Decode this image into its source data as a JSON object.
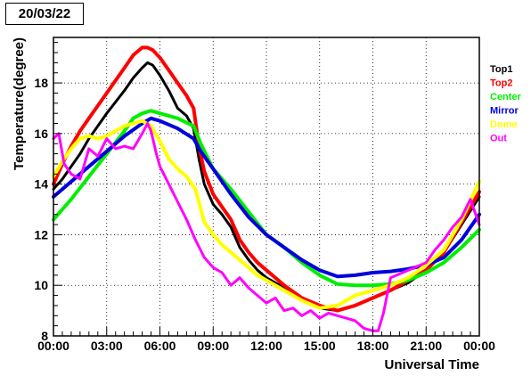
{
  "header": {
    "date": "20/03/22"
  },
  "chart_data": {
    "type": "scatter",
    "title": "",
    "xlabel": "Universal Time",
    "ylabel": "Temperature(degree)",
    "xlim": [
      0,
      24
    ],
    "ylim": [
      8,
      19.8
    ],
    "x_ticks": [
      {
        "v": 0,
        "label": "00:00"
      },
      {
        "v": 3,
        "label": "03:00"
      },
      {
        "v": 6,
        "label": "06:00"
      },
      {
        "v": 9,
        "label": "09:00"
      },
      {
        "v": 12,
        "label": "12:00"
      },
      {
        "v": 15,
        "label": "15:00"
      },
      {
        "v": 18,
        "label": "18:00"
      },
      {
        "v": 21,
        "label": "21:00"
      },
      {
        "v": 24,
        "label": "00:00"
      }
    ],
    "y_ticks": [
      {
        "v": 8,
        "label": "8"
      },
      {
        "v": 10,
        "label": "10"
      },
      {
        "v": 12,
        "label": "12"
      },
      {
        "v": 14,
        "label": "14"
      },
      {
        "v": 16,
        "label": "16"
      },
      {
        "v": 18,
        "label": "18"
      }
    ],
    "grid": true,
    "legend_position": "right",
    "series": [
      {
        "name": "Top1",
        "color": "#000000",
        "width": 3,
        "points": [
          [
            0,
            13.8
          ],
          [
            0.5,
            14.2
          ],
          [
            1,
            14.7
          ],
          [
            1.5,
            15.2
          ],
          [
            2,
            15.8
          ],
          [
            3,
            16.8
          ],
          [
            4,
            17.7
          ],
          [
            4.5,
            18.2
          ],
          [
            5,
            18.6
          ],
          [
            5.3,
            18.8
          ],
          [
            5.6,
            18.7
          ],
          [
            6,
            18.3
          ],
          [
            6.5,
            17.7
          ],
          [
            7,
            17.0
          ],
          [
            7.5,
            16.7
          ],
          [
            7.9,
            16.2
          ],
          [
            8.2,
            15.0
          ],
          [
            8.5,
            14.0
          ],
          [
            9,
            13.2
          ],
          [
            9.5,
            12.8
          ],
          [
            10,
            12.3
          ],
          [
            10.5,
            11.5
          ],
          [
            11,
            11.0
          ],
          [
            11.5,
            10.6
          ],
          [
            12,
            10.3
          ],
          [
            13,
            9.9
          ],
          [
            14,
            9.5
          ],
          [
            15,
            9.1
          ],
          [
            16,
            9.0
          ],
          [
            17,
            9.2
          ],
          [
            18,
            9.5
          ],
          [
            19,
            9.8
          ],
          [
            20,
            10.1
          ],
          [
            21,
            10.6
          ],
          [
            22,
            11.3
          ],
          [
            23,
            12.4
          ],
          [
            24,
            13.5
          ]
        ]
      },
      {
        "name": "Top2",
        "color": "#ff0000",
        "width": 4,
        "points": [
          [
            0,
            14.0
          ],
          [
            0.5,
            14.8
          ],
          [
            1,
            15.5
          ],
          [
            1.5,
            16.1
          ],
          [
            2,
            16.6
          ],
          [
            3,
            17.6
          ],
          [
            4,
            18.6
          ],
          [
            4.5,
            19.1
          ],
          [
            5,
            19.4
          ],
          [
            5.3,
            19.4
          ],
          [
            5.6,
            19.3
          ],
          [
            6,
            19.0
          ],
          [
            6.5,
            18.5
          ],
          [
            7,
            18.0
          ],
          [
            7.5,
            17.5
          ],
          [
            7.9,
            17.0
          ],
          [
            8.2,
            15.5
          ],
          [
            8.5,
            14.5
          ],
          [
            9,
            13.6
          ],
          [
            9.5,
            13.1
          ],
          [
            10,
            12.6
          ],
          [
            10.5,
            11.8
          ],
          [
            11,
            11.3
          ],
          [
            11.5,
            10.9
          ],
          [
            12,
            10.6
          ],
          [
            13,
            10.0
          ],
          [
            14,
            9.5
          ],
          [
            15,
            9.2
          ],
          [
            16,
            9.0
          ],
          [
            17,
            9.2
          ],
          [
            18,
            9.5
          ],
          [
            19,
            9.8
          ],
          [
            20,
            10.2
          ],
          [
            21,
            10.6
          ],
          [
            22,
            11.3
          ],
          [
            23,
            12.5
          ],
          [
            24,
            13.7
          ]
        ]
      },
      {
        "name": "Center",
        "color": "#00ee00",
        "width": 4,
        "points": [
          [
            0,
            12.6
          ],
          [
            1,
            13.4
          ],
          [
            2,
            14.3
          ],
          [
            3,
            15.2
          ],
          [
            4,
            16.1
          ],
          [
            4.5,
            16.6
          ],
          [
            5,
            16.8
          ],
          [
            5.5,
            16.9
          ],
          [
            6,
            16.8
          ],
          [
            7,
            16.6
          ],
          [
            7.9,
            16.3
          ],
          [
            8.3,
            15.6
          ],
          [
            9,
            14.6
          ],
          [
            10,
            13.8
          ],
          [
            11,
            12.9
          ],
          [
            12,
            12.0
          ],
          [
            13,
            11.5
          ],
          [
            14,
            10.9
          ],
          [
            15,
            10.4
          ],
          [
            16,
            10.05
          ],
          [
            17,
            10.0
          ],
          [
            18,
            10.0
          ],
          [
            19,
            10.05
          ],
          [
            20,
            10.2
          ],
          [
            21,
            10.5
          ],
          [
            22,
            10.9
          ],
          [
            23,
            11.5
          ],
          [
            24,
            12.2
          ]
        ]
      },
      {
        "name": "Mirror",
        "color": "#0000dd",
        "width": 4,
        "points": [
          [
            0,
            13.5
          ],
          [
            1,
            14.1
          ],
          [
            2,
            14.7
          ],
          [
            3,
            15.3
          ],
          [
            4,
            15.9
          ],
          [
            5,
            16.4
          ],
          [
            5.5,
            16.6
          ],
          [
            6,
            16.5
          ],
          [
            7,
            16.2
          ],
          [
            7.9,
            15.8
          ],
          [
            8.3,
            15.3
          ],
          [
            9,
            14.6
          ],
          [
            10,
            13.6
          ],
          [
            11,
            12.7
          ],
          [
            12,
            12.0
          ],
          [
            13,
            11.5
          ],
          [
            14,
            11.0
          ],
          [
            15,
            10.6
          ],
          [
            16,
            10.35
          ],
          [
            17,
            10.4
          ],
          [
            18,
            10.5
          ],
          [
            19,
            10.55
          ],
          [
            20,
            10.65
          ],
          [
            21,
            10.8
          ],
          [
            22,
            11.1
          ],
          [
            23,
            11.8
          ],
          [
            24,
            12.8
          ]
        ]
      },
      {
        "name": "Dome",
        "color": "#ffff00",
        "width": 4,
        "points": [
          [
            0,
            14.3
          ],
          [
            0.5,
            14.9
          ],
          [
            1,
            15.4
          ],
          [
            1.5,
            15.8
          ],
          [
            2,
            15.9
          ],
          [
            2.5,
            15.8
          ],
          [
            3,
            15.9
          ],
          [
            3.5,
            16.1
          ],
          [
            4,
            16.3
          ],
          [
            4.5,
            16.4
          ],
          [
            5,
            16.5
          ],
          [
            5.5,
            16.3
          ],
          [
            6,
            15.7
          ],
          [
            6.5,
            15.0
          ],
          [
            7,
            14.6
          ],
          [
            7.5,
            14.3
          ],
          [
            8,
            13.8
          ],
          [
            8.5,
            12.5
          ],
          [
            9,
            12.0
          ],
          [
            9.5,
            11.6
          ],
          [
            10,
            11.3
          ],
          [
            10.5,
            11.0
          ],
          [
            11,
            10.7
          ],
          [
            11.5,
            10.4
          ],
          [
            12,
            10.2
          ],
          [
            13,
            9.8
          ],
          [
            14,
            9.4
          ],
          [
            15,
            9.1
          ],
          [
            16,
            9.2
          ],
          [
            17,
            9.6
          ],
          [
            18,
            9.8
          ],
          [
            19,
            10.0
          ],
          [
            20,
            10.3
          ],
          [
            21,
            10.8
          ],
          [
            22,
            11.4
          ],
          [
            23,
            12.6
          ],
          [
            24,
            14.1
          ]
        ]
      },
      {
        "name": "Out",
        "color": "#ff00ff",
        "width": 3,
        "points": [
          [
            0,
            15.8
          ],
          [
            0.3,
            16.0
          ],
          [
            0.6,
            14.8
          ],
          [
            1,
            14.4
          ],
          [
            1.5,
            14.2
          ],
          [
            2,
            15.4
          ],
          [
            2.5,
            15.1
          ],
          [
            3,
            15.8
          ],
          [
            3.5,
            15.4
          ],
          [
            4,
            15.5
          ],
          [
            4.5,
            15.4
          ],
          [
            5,
            16.0
          ],
          [
            5.3,
            16.4
          ],
          [
            5.5,
            16.1
          ],
          [
            5.8,
            15.2
          ],
          [
            6,
            14.7
          ],
          [
            6.5,
            14.0
          ],
          [
            7,
            13.3
          ],
          [
            7.5,
            12.6
          ],
          [
            8,
            11.8
          ],
          [
            8.5,
            11.1
          ],
          [
            9,
            10.7
          ],
          [
            9.5,
            10.5
          ],
          [
            10,
            10.0
          ],
          [
            10.5,
            10.3
          ],
          [
            11,
            9.9
          ],
          [
            11.5,
            9.6
          ],
          [
            12,
            9.3
          ],
          [
            12.5,
            9.5
          ],
          [
            13,
            9.0
          ],
          [
            13.5,
            9.1
          ],
          [
            14,
            8.8
          ],
          [
            14.5,
            9.0
          ],
          [
            15,
            8.7
          ],
          [
            15.5,
            8.9
          ],
          [
            16,
            8.8
          ],
          [
            16.5,
            8.7
          ],
          [
            17,
            8.6
          ],
          [
            17.5,
            8.3
          ],
          [
            18,
            8.2
          ],
          [
            18.3,
            8.2
          ],
          [
            18.6,
            8.9
          ],
          [
            19,
            10.3
          ],
          [
            20,
            10.6
          ],
          [
            21,
            10.9
          ],
          [
            21.5,
            11.4
          ],
          [
            22,
            11.8
          ],
          [
            22.5,
            12.3
          ],
          [
            23,
            12.7
          ],
          [
            23.5,
            13.4
          ],
          [
            24,
            12.4
          ]
        ]
      }
    ]
  }
}
